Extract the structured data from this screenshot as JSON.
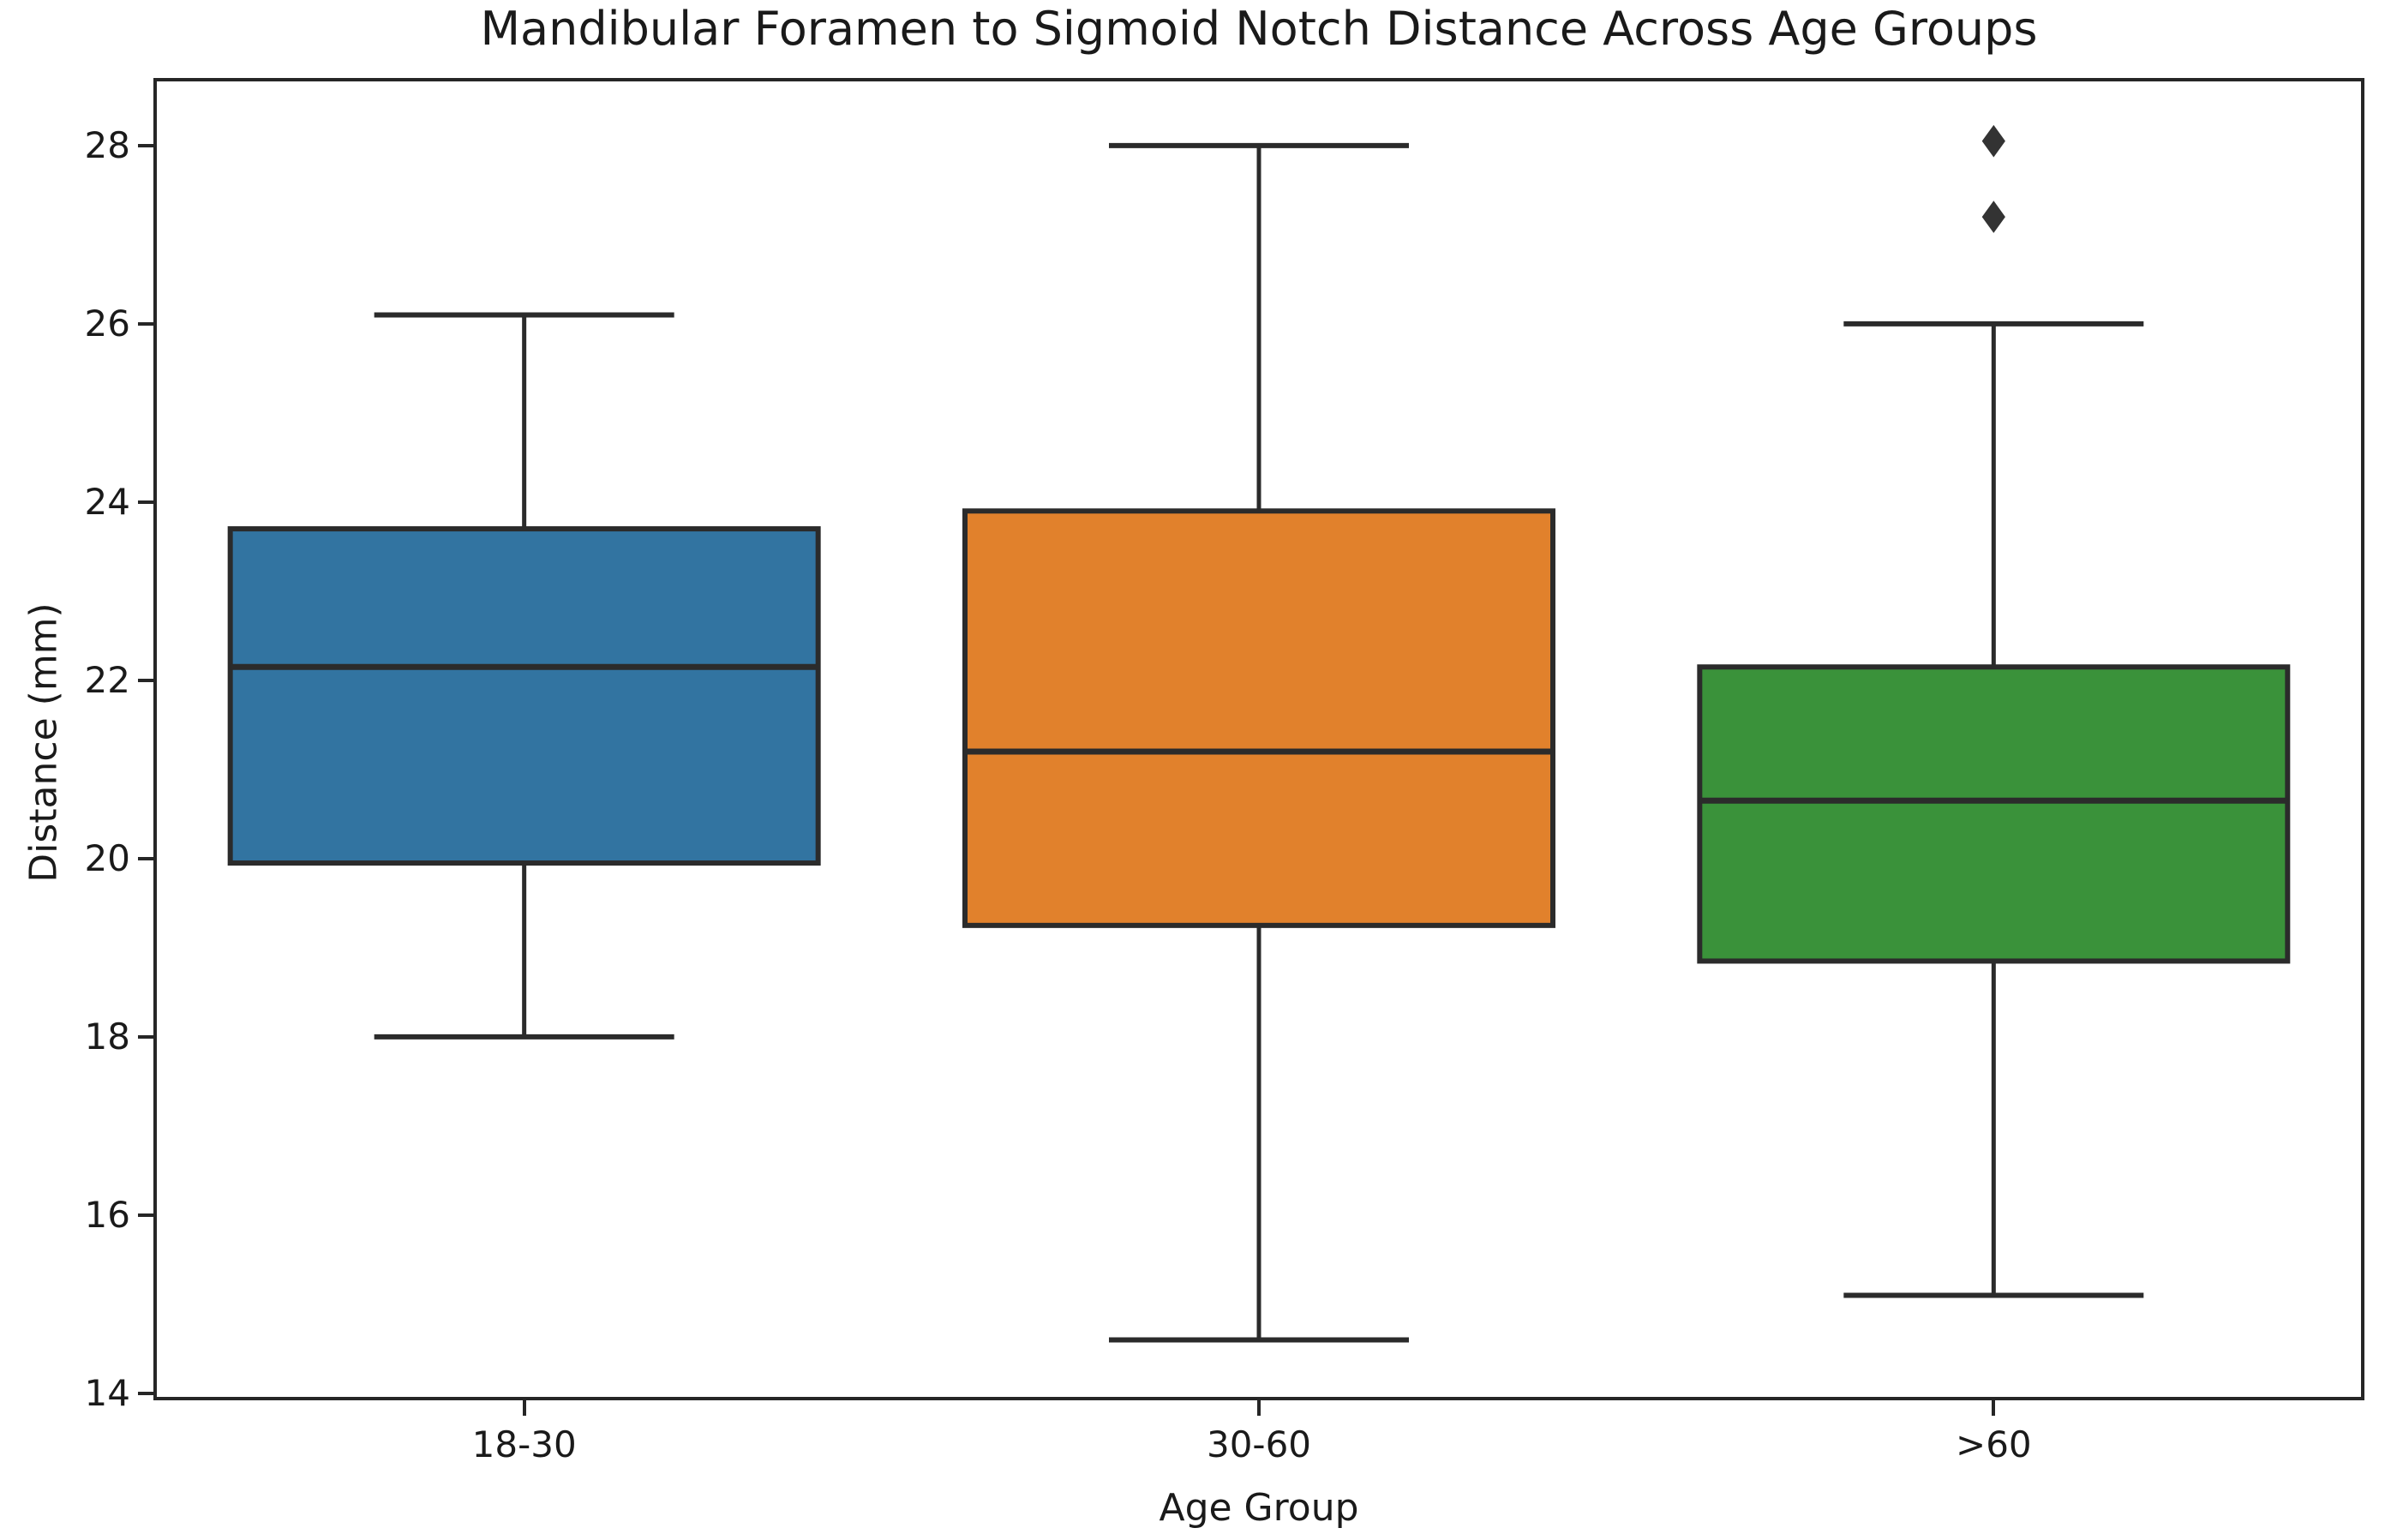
{
  "chart_data": {
    "type": "box",
    "title": "Mandibular Foramen to Sigmoid Notch Distance Across Age Groups",
    "xlabel": "Age Group",
    "ylabel": "Distance (mm)",
    "categories": [
      "18-30",
      "30-60",
      ">60"
    ],
    "ylim": [
      13.96,
      28.72
    ],
    "yticks": [
      14,
      16,
      18,
      20,
      22,
      24,
      26,
      28
    ],
    "grid": false,
    "legend_position": "none",
    "series": [
      {
        "name": "18-30",
        "whisker_low": 18.0,
        "q1": 19.95,
        "median": 22.15,
        "q3": 23.7,
        "whisker_high": 26.1,
        "outliers": [],
        "color": "#3274a1"
      },
      {
        "name": "30-60",
        "whisker_low": 14.6,
        "q1": 19.25,
        "median": 21.2,
        "q3": 23.9,
        "whisker_high": 28.0,
        "outliers": [],
        "color": "#e1812c"
      },
      {
        "name": ">60",
        "whisker_low": 15.1,
        "q1": 18.85,
        "median": 20.65,
        "q3": 22.15,
        "whisker_high": 26.0,
        "outliers": [
          27.2,
          28.05
        ],
        "color": "#3a923a"
      }
    ],
    "edge_color": "#2b2b2b",
    "text_color": "#1a1a1a"
  }
}
